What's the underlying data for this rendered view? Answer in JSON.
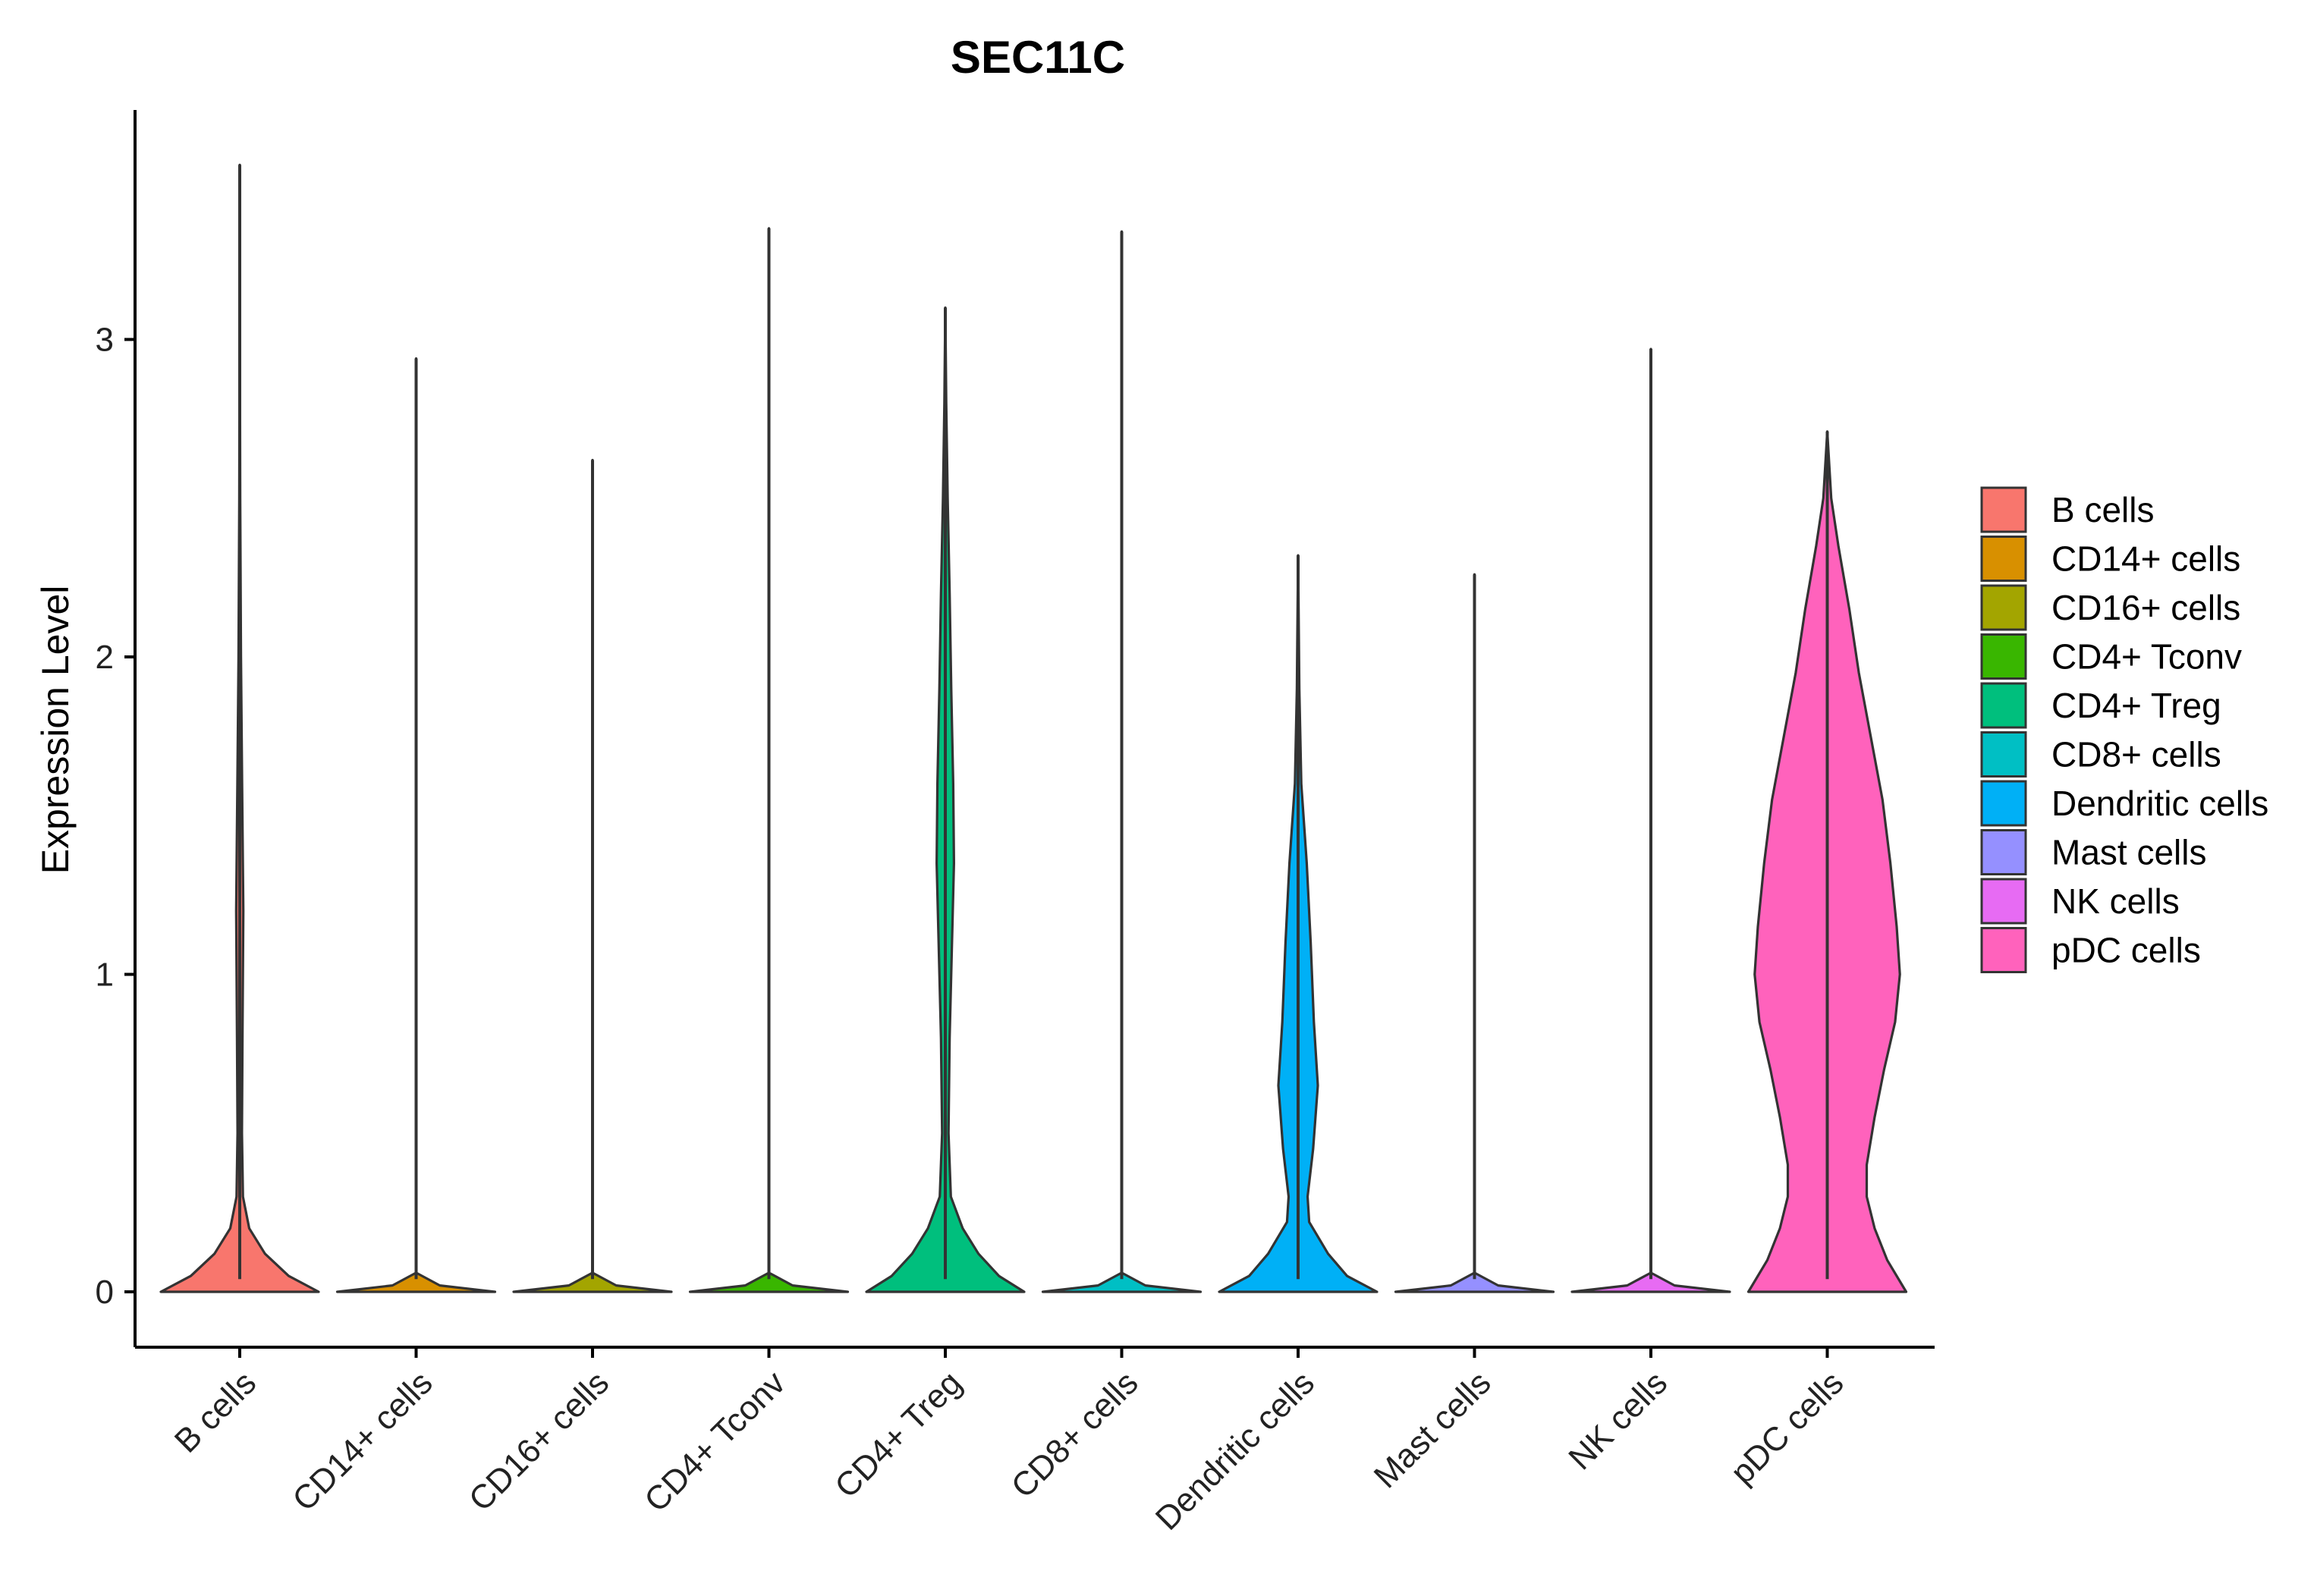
{
  "chart_data": {
    "type": "violin",
    "title": "SEC11C",
    "xlabel": "",
    "ylabel": "Expression Level",
    "ylim": [
      -0.18,
      3.72
    ],
    "yticks": [
      0,
      1,
      2,
      3
    ],
    "ytick_labels": [
      "0",
      "1",
      "2",
      "3"
    ],
    "categories": [
      "B cells",
      "CD14+ cells",
      "CD16+ cells",
      "CD4+ Tconv",
      "CD4+ Treg",
      "CD8+ cells",
      "Dendritic cells",
      "Mast cells",
      "NK cells",
      "pDC cells"
    ],
    "legend_position": "right",
    "series": [
      {
        "name": "B cells",
        "color": "#F8766D",
        "max": 3.55,
        "density": [
          [
            0,
            1.0
          ],
          [
            0.05,
            0.62
          ],
          [
            0.12,
            0.32
          ],
          [
            0.2,
            0.12
          ],
          [
            0.3,
            0.04
          ],
          [
            0.5,
            0.028
          ],
          [
            0.8,
            0.035
          ],
          [
            1.2,
            0.045
          ],
          [
            1.6,
            0.03
          ],
          [
            2.0,
            0.015
          ],
          [
            2.5,
            0.006
          ],
          [
            3.0,
            0.002
          ],
          [
            3.55,
            0
          ]
        ]
      },
      {
        "name": "CD14+ cells",
        "color": "#D89000",
        "max": 2.94,
        "density": [
          [
            0,
            1.0
          ],
          [
            0.02,
            0.3
          ],
          [
            0.06,
            0.0
          ],
          [
            2.94,
            0
          ]
        ]
      },
      {
        "name": "CD16+ cells",
        "color": "#A3A500",
        "max": 2.62,
        "density": [
          [
            0,
            1.0
          ],
          [
            0.02,
            0.3
          ],
          [
            0.06,
            0.0
          ],
          [
            2.62,
            0
          ]
        ]
      },
      {
        "name": "CD4+ Tconv",
        "color": "#39B600",
        "max": 3.35,
        "density": [
          [
            0,
            1.0
          ],
          [
            0.02,
            0.3
          ],
          [
            0.06,
            0.0
          ],
          [
            3.35,
            0
          ]
        ]
      },
      {
        "name": "CD4+ Treg",
        "color": "#00BF7D",
        "max": 3.1,
        "density": [
          [
            0,
            1.0
          ],
          [
            0.05,
            0.68
          ],
          [
            0.12,
            0.42
          ],
          [
            0.2,
            0.22
          ],
          [
            0.3,
            0.07
          ],
          [
            0.5,
            0.04
          ],
          [
            0.8,
            0.055
          ],
          [
            1.1,
            0.085
          ],
          [
            1.35,
            0.11
          ],
          [
            1.6,
            0.1
          ],
          [
            1.9,
            0.075
          ],
          [
            2.2,
            0.055
          ],
          [
            2.5,
            0.03
          ],
          [
            2.8,
            0.012
          ],
          [
            3.1,
            0
          ]
        ]
      },
      {
        "name": "CD8+ cells",
        "color": "#00BFC4",
        "max": 3.34,
        "density": [
          [
            0,
            1.0
          ],
          [
            0.02,
            0.3
          ],
          [
            0.06,
            0.0
          ],
          [
            3.34,
            0
          ]
        ]
      },
      {
        "name": "Dendritic cells",
        "color": "#00B0F6",
        "max": 2.32,
        "density": [
          [
            0,
            1.0
          ],
          [
            0.05,
            0.62
          ],
          [
            0.12,
            0.38
          ],
          [
            0.22,
            0.14
          ],
          [
            0.3,
            0.12
          ],
          [
            0.45,
            0.19
          ],
          [
            0.65,
            0.25
          ],
          [
            0.85,
            0.2
          ],
          [
            1.1,
            0.16
          ],
          [
            1.35,
            0.11
          ],
          [
            1.6,
            0.04
          ],
          [
            1.9,
            0.015
          ],
          [
            2.32,
            0
          ]
        ]
      },
      {
        "name": "Mast cells",
        "color": "#9590FF",
        "max": 2.26,
        "density": [
          [
            0,
            1.0
          ],
          [
            0.02,
            0.3
          ],
          [
            0.06,
            0.0
          ],
          [
            2.26,
            0
          ]
        ]
      },
      {
        "name": "NK cells",
        "color": "#E76BF3",
        "max": 2.97,
        "density": [
          [
            0,
            1.0
          ],
          [
            0.02,
            0.3
          ],
          [
            0.06,
            0.0
          ],
          [
            2.97,
            0
          ]
        ]
      },
      {
        "name": "pDC cells",
        "color": "#FF62BC",
        "max": 2.71,
        "density": [
          [
            0,
            1.0
          ],
          [
            0.1,
            0.76
          ],
          [
            0.2,
            0.6
          ],
          [
            0.3,
            0.5
          ],
          [
            0.4,
            0.5
          ],
          [
            0.55,
            0.6
          ],
          [
            0.7,
            0.72
          ],
          [
            0.85,
            0.86
          ],
          [
            1.0,
            0.92
          ],
          [
            1.15,
            0.88
          ],
          [
            1.35,
            0.8
          ],
          [
            1.55,
            0.7
          ],
          [
            1.75,
            0.55
          ],
          [
            1.95,
            0.4
          ],
          [
            2.15,
            0.28
          ],
          [
            2.35,
            0.14
          ],
          [
            2.5,
            0.05
          ],
          [
            2.71,
            0
          ]
        ]
      }
    ]
  }
}
